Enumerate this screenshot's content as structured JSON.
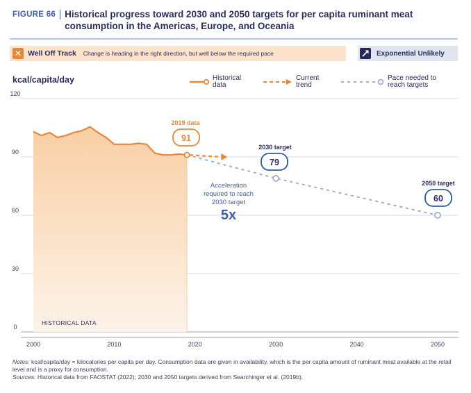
{
  "figure": {
    "label": "FIGURE 66",
    "title": "Historical progress toward 2030 and 2050 targets for per capita ruminant meat consumption in the Americas, Europe, and Oceania"
  },
  "status": {
    "title": "Well Off Track",
    "description": "Change is heading in the right direction, but well below the required pace",
    "icon": "x-icon",
    "color": "#e8873a"
  },
  "exponential": {
    "title": "Exponential Unlikely",
    "icon": "diagonal-arrow-icon"
  },
  "legend": {
    "historical": "Historical data",
    "current": "Current trend",
    "pace": "Pace needed to reach targets"
  },
  "annotations": {
    "data_2019_label": "2019 data",
    "data_2019_value": "91",
    "target_2030_label": "2030 target",
    "target_2030_value": "79",
    "target_2050_label": "2050 target",
    "target_2050_value": "60",
    "acceleration_text": [
      "Acceleration",
      "required to reach",
      "2030 target"
    ],
    "acceleration_value": "5x",
    "historical_area_label": "HISTORICAL DATA"
  },
  "notes": {
    "notes_label": "Notes:",
    "notes_text": " kcal/capita/day = kilocalories per capita per day. Consumption data are given in availability, which is the per capita amount of ruminant meat available at the retail level and is a proxy for consumption.",
    "sources_label": "Sources:",
    "sources_text": " Historical data from FAOSTAT (2022); 2030 and 2050 targets derived from Searchinger et al. (2019b)."
  },
  "colors": {
    "historical": "#e8873a",
    "pace": "#a4abcc",
    "area_top": "#f8cfa4",
    "navy": "#2b2d5a",
    "target_border": "#2f5b9c"
  },
  "chart_data": {
    "type": "line",
    "ylabel": "kcal/capita/day",
    "ylim": [
      0,
      120
    ],
    "yticks": [
      0,
      30,
      60,
      90,
      120
    ],
    "xlim": [
      2000,
      2050
    ],
    "xticks": [
      2000,
      2010,
      2020,
      2030,
      2040,
      2050
    ],
    "series": [
      {
        "name": "Historical data",
        "style": "solid-area",
        "x": [
          2000,
          2001,
          2002,
          2003,
          2004,
          2005,
          2006,
          2007,
          2008,
          2009,
          2010,
          2011,
          2012,
          2013,
          2014,
          2015,
          2016,
          2017,
          2018,
          2019
        ],
        "y": [
          103,
          101,
          102.5,
          100,
          101,
          102.5,
          103.5,
          105.5,
          102.5,
          100,
          96.5,
          96.5,
          96.5,
          97,
          96.5,
          92,
          91,
          91,
          91.5,
          91
        ]
      },
      {
        "name": "Current trend",
        "style": "dashed-arrow",
        "x": [
          2019,
          2024
        ],
        "y": [
          91,
          90
        ]
      },
      {
        "name": "Pace needed to reach targets",
        "style": "dashed",
        "x": [
          2019,
          2030,
          2050
        ],
        "y": [
          91,
          79,
          60
        ]
      }
    ]
  }
}
